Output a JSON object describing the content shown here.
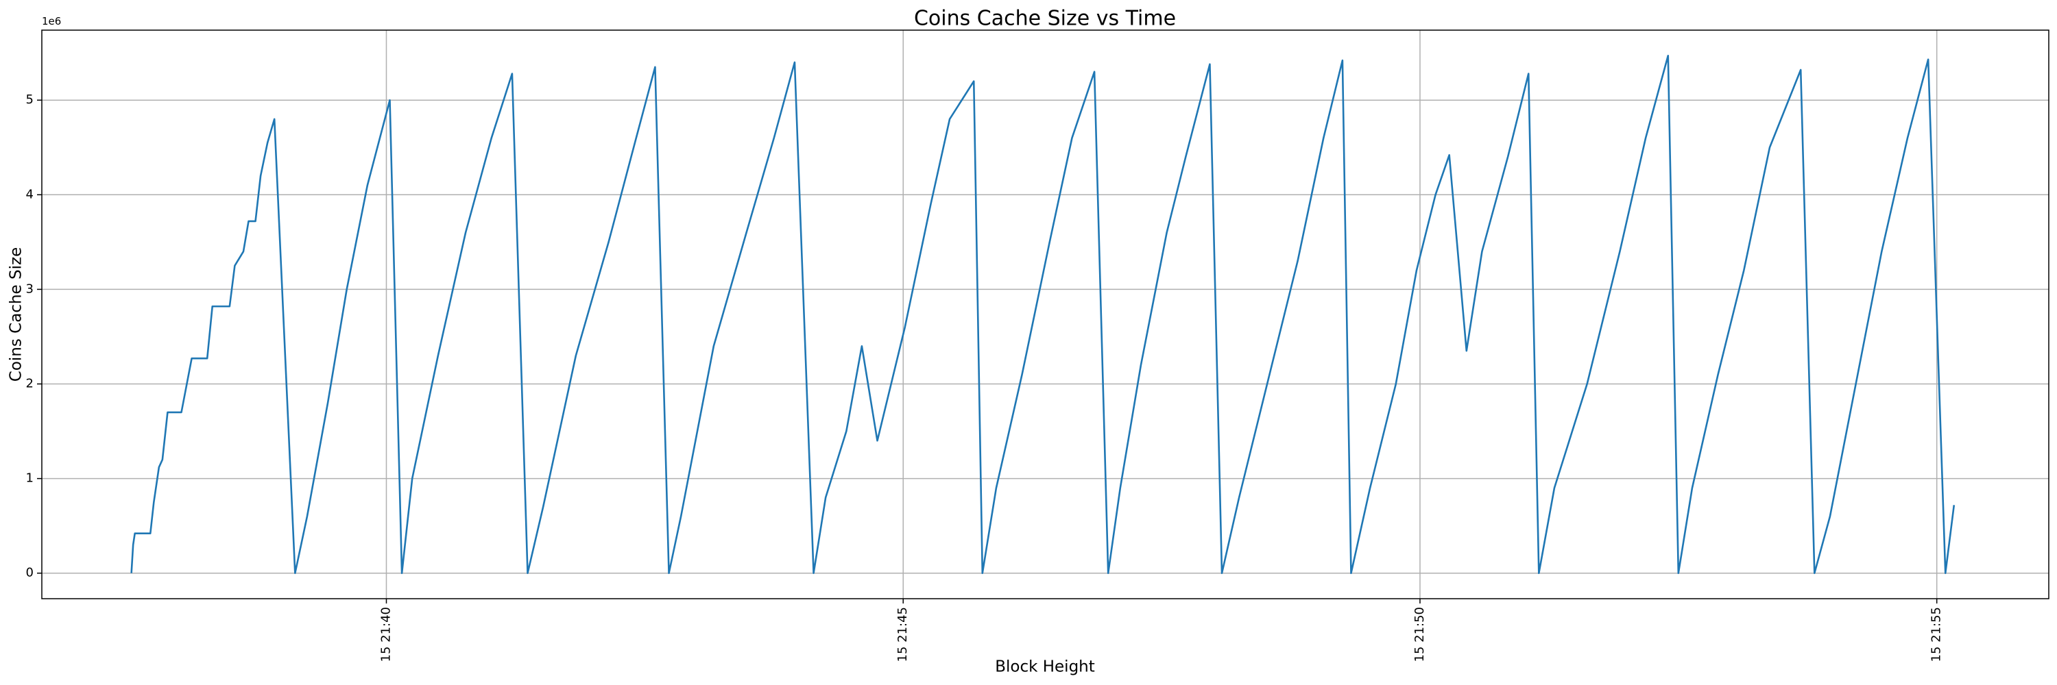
{
  "chart_data": {
    "type": "line",
    "title": "Coins Cache Size vs Time",
    "x_label": "Block Height",
    "y_label": "Coins Cache Size",
    "y_offset_label": "1e6",
    "xlim": [
      "15 21:36:40",
      "15 21:56:05"
    ],
    "xticks": [
      "15 21:40",
      "15 21:45",
      "15 21:50",
      "15 21:55"
    ],
    "ylim": [
      -0.27,
      5.74
    ],
    "yticks": [
      0,
      1,
      2,
      3,
      4,
      5
    ],
    "grid": true,
    "x": [
      "15 21:37:32",
      "15 21:37:33",
      "15 21:37:34",
      "15 21:37:43",
      "15 21:37:45",
      "15 21:37:48",
      "15 21:37:50",
      "15 21:37:53",
      "15 21:38:01",
      "15 21:38:07",
      "15 21:38:16",
      "15 21:38:19",
      "15 21:38:29",
      "15 21:38:32",
      "15 21:38:37",
      "15 21:38:40",
      "15 21:38:44",
      "15 21:38:47",
      "15 21:38:51",
      "15 21:38:55",
      "15 21:39:07",
      "15 21:39:14",
      "15 21:39:26",
      "15 21:39:37",
      "15 21:39:49",
      "15 21:40:02",
      "15 21:40:09",
      "15 21:40:15",
      "15 21:40:30",
      "15 21:40:46",
      "15 21:41:01",
      "15 21:41:13",
      "15 21:41:22",
      "15 21:41:31",
      "15 21:41:50",
      "15 21:42:09",
      "15 21:42:25",
      "15 21:42:36",
      "15 21:42:44",
      "15 21:42:51",
      "15 21:43:10",
      "15 21:43:29",
      "15 21:43:45",
      "15 21:43:57",
      "15 21:44:08",
      "15 21:44:15",
      "15 21:44:27",
      "15 21:44:36",
      "15 21:44:45",
      "15 21:45:01",
      "15 21:45:16",
      "15 21:45:27",
      "15 21:45:41",
      "15 21:45:46",
      "15 21:45:54",
      "15 21:46:09",
      "15 21:46:25",
      "15 21:46:38",
      "15 21:46:51",
      "15 21:46:59",
      "15 21:47:06",
      "15 21:47:18",
      "15 21:47:33",
      "15 21:47:44",
      "15 21:47:58",
      "15 21:48:05",
      "15 21:48:15",
      "15 21:48:34",
      "15 21:48:49",
      "15 21:49:04",
      "15 21:49:15",
      "15 21:49:20",
      "15 21:49:31",
      "15 21:49:46",
      "15 21:49:58",
      "15 21:50:09",
      "15 21:50:17",
      "15 21:50:27",
      "15 21:50:36",
      "15 21:50:51",
      "15 21:51:03",
      "15 21:51:09",
      "15 21:51:18",
      "15 21:51:37",
      "15 21:51:56",
      "15 21:52:11",
      "15 21:52:24",
      "15 21:52:30",
      "15 21:52:38",
      "15 21:52:53",
      "15 21:53:08",
      "15 21:53:23",
      "15 21:53:41",
      "15 21:53:49",
      "15 21:53:58",
      "15 21:54:13",
      "15 21:54:28",
      "15 21:54:43",
      "15 21:54:55",
      "15 21:55:05",
      "15 21:55:10"
    ],
    "series": [
      {
        "name": "Coins Cache Size",
        "color": "#1f77b4",
        "values": [
          0,
          0.3,
          0.42,
          0.42,
          0.75,
          1.12,
          1.2,
          1.7,
          1.7,
          2.27,
          2.27,
          2.82,
          2.82,
          3.25,
          3.4,
          3.72,
          3.72,
          4.2,
          4.55,
          4.8,
          0,
          0.6,
          1.8,
          3.0,
          4.1,
          5.0,
          0,
          1.0,
          2.3,
          3.6,
          4.6,
          5.28,
          0,
          0.7,
          2.3,
          3.5,
          4.6,
          5.35,
          0,
          0.6,
          2.4,
          3.6,
          4.6,
          5.4,
          0,
          0.8,
          1.5,
          2.4,
          1.4,
          2.6,
          3.9,
          4.8,
          5.2,
          0,
          0.9,
          2.1,
          3.5,
          4.6,
          5.3,
          0,
          0.9,
          2.2,
          3.6,
          4.4,
          5.38,
          0,
          0.8,
          2.2,
          3.3,
          4.6,
          5.42,
          0,
          0.9,
          2.0,
          3.2,
          4.0,
          4.42,
          2.35,
          3.4,
          4.4,
          5.28,
          0,
          0.9,
          2.0,
          3.4,
          4.6,
          5.47,
          0,
          0.9,
          2.1,
          3.2,
          4.5,
          5.32,
          0,
          0.6,
          2.0,
          3.4,
          4.6,
          5.43,
          0,
          0.72
        ]
      }
    ]
  }
}
